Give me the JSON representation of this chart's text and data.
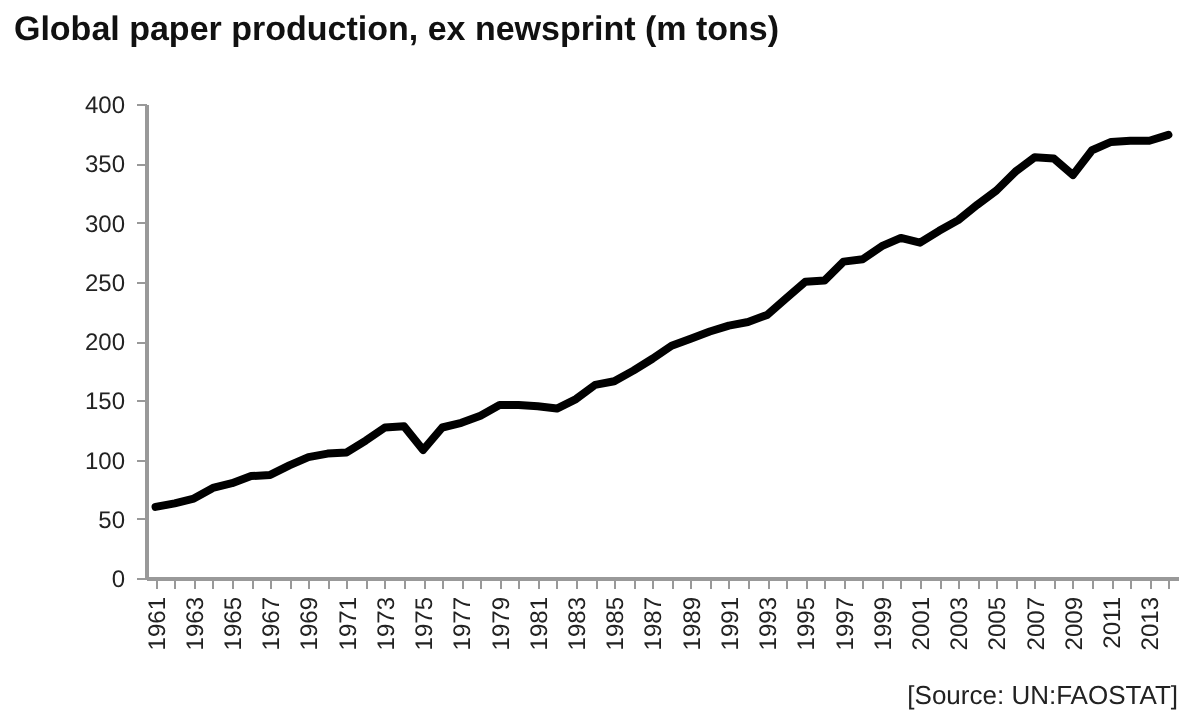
{
  "chart_data": {
    "type": "line",
    "title": "Global paper production, ex newsprint (m tons)",
    "annotations": [
      "[Source: UN:FAOSTAT]"
    ],
    "categories": [
      "1961",
      null,
      "1963",
      null,
      "1965",
      null,
      "1967",
      null,
      "1969",
      null,
      "1971",
      null,
      "1973",
      null,
      "1975",
      null,
      "1977",
      null,
      "1979",
      null,
      "1981",
      null,
      "1983",
      null,
      "1985",
      null,
      "1987",
      null,
      "1989",
      null,
      "1991",
      null,
      "1993",
      null,
      "1995",
      null,
      "1997",
      null,
      "1999",
      null,
      "2001",
      null,
      "2003",
      null,
      "2005",
      null,
      "2007",
      null,
      "2009",
      null,
      "2011",
      null,
      "2013",
      null
    ],
    "series": [
      {
        "color": "#000000",
        "values": [
          60,
          63,
          67,
          76,
          80,
          86,
          87,
          95,
          102,
          105,
          106,
          116,
          127,
          128,
          108,
          127,
          131,
          137,
          146,
          146,
          145,
          143,
          151,
          163,
          166,
          175,
          185,
          196,
          202,
          208,
          213,
          216,
          222,
          236,
          250,
          251,
          267,
          269,
          280,
          287,
          283,
          293,
          302,
          315,
          327,
          343,
          355,
          354,
          340,
          361,
          368,
          369,
          369,
          374
        ]
      }
    ],
    "ylim": [
      0,
      400
    ],
    "yticks": [
      0,
      50,
      100,
      150,
      200,
      250,
      300,
      350,
      400
    ],
    "grid": false,
    "marker": "none",
    "line_style": "solid"
  }
}
